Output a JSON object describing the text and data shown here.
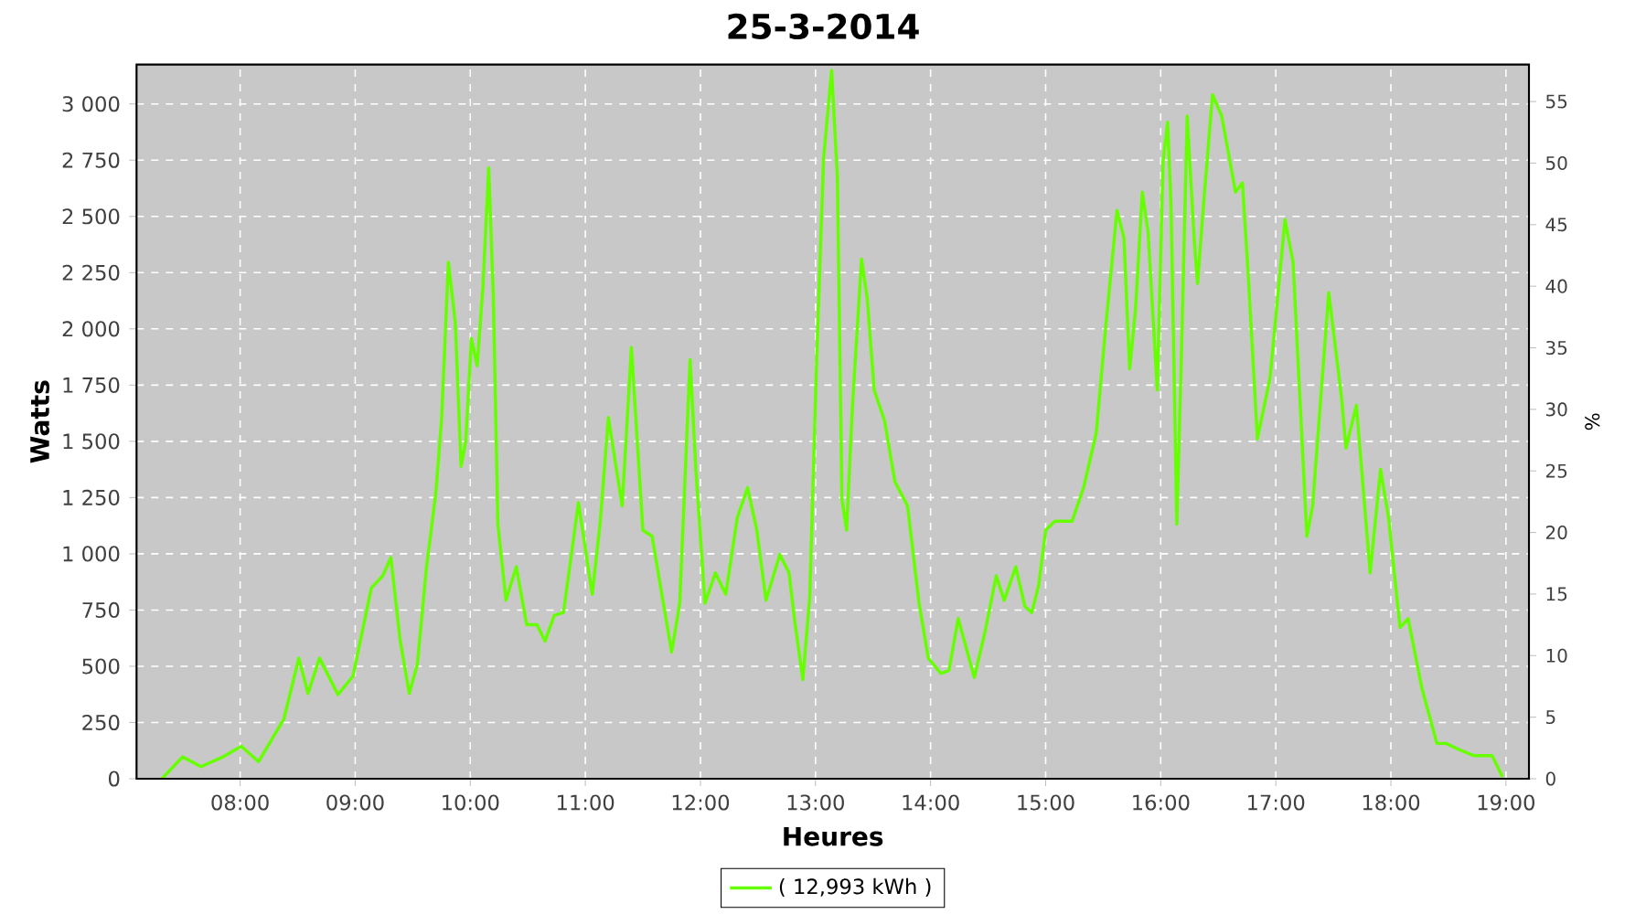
{
  "chart_data": {
    "type": "line",
    "title": "25-3-2014",
    "xlabel": "Heures",
    "ylabel": "Watts",
    "y2label": "%",
    "xlim": [
      7.1,
      19.2
    ],
    "xticks": [
      {
        "value": 8,
        "label": "08:00"
      },
      {
        "value": 9,
        "label": "09:00"
      },
      {
        "value": 10,
        "label": "10:00"
      },
      {
        "value": 11,
        "label": "11:00"
      },
      {
        "value": 12,
        "label": "12:00"
      },
      {
        "value": 13,
        "label": "13:00"
      },
      {
        "value": 14,
        "label": "14:00"
      },
      {
        "value": 15,
        "label": "15:00"
      },
      {
        "value": 16,
        "label": "16:00"
      },
      {
        "value": 17,
        "label": "17:00"
      },
      {
        "value": 18,
        "label": "18:00"
      },
      {
        "value": 19,
        "label": "19:00"
      }
    ],
    "ylim": [
      0,
      3175
    ],
    "yticks": [
      0,
      250,
      500,
      750,
      {
        "value": 1000,
        "label": "1 000"
      },
      {
        "value": 1250,
        "label": "1 250"
      },
      {
        "value": 1500,
        "label": "1 500"
      },
      {
        "value": 1750,
        "label": "1 750"
      },
      {
        "value": 2000,
        "label": "2 000"
      },
      {
        "value": 2250,
        "label": "2 250"
      },
      {
        "value": 2500,
        "label": "2 500"
      },
      {
        "value": 2750,
        "label": "2 750"
      },
      {
        "value": 3000,
        "label": "3 000"
      }
    ],
    "y2lim": [
      0,
      58
    ],
    "y2ticks": [
      0,
      5,
      10,
      15,
      20,
      25,
      30,
      35,
      40,
      45,
      50,
      55
    ],
    "grid": true,
    "legend": "bottom",
    "marker": "none",
    "line_style": "solid",
    "series": [
      {
        "name": "( 12,993 kWh )",
        "color": "#66ff00",
        "x": [
          7.32,
          7.5,
          7.66,
          7.85,
          8.01,
          8.16,
          8.38,
          8.51,
          8.59,
          8.69,
          8.85,
          8.98,
          9.14,
          9.24,
          9.31,
          9.39,
          9.47,
          9.54,
          9.62,
          9.7,
          9.75,
          9.81,
          9.87,
          9.92,
          9.96,
          10.01,
          10.06,
          10.11,
          10.16,
          10.2,
          10.24,
          10.31,
          10.4,
          10.49,
          10.58,
          10.65,
          10.73,
          10.81,
          10.94,
          11.06,
          11.13,
          11.2,
          11.32,
          11.4,
          11.5,
          11.58,
          11.66,
          11.75,
          11.82,
          11.91,
          11.96,
          12.04,
          12.13,
          12.22,
          12.32,
          12.41,
          12.49,
          12.57,
          12.69,
          12.77,
          12.82,
          12.89,
          12.95,
          13.01,
          13.07,
          13.14,
          13.19,
          13.23,
          13.27,
          13.32,
          13.4,
          13.45,
          13.51,
          13.6,
          13.69,
          13.8,
          13.9,
          13.98,
          14.09,
          14.16,
          14.24,
          14.32,
          14.38,
          14.47,
          14.57,
          14.64,
          14.74,
          14.82,
          14.88,
          14.94,
          15.0,
          15.08,
          15.23,
          15.33,
          15.44,
          15.52,
          15.62,
          15.68,
          15.73,
          15.78,
          15.84,
          15.89,
          15.97,
          16.02,
          16.06,
          16.09,
          16.14,
          16.18,
          16.23,
          16.29,
          16.32,
          16.37,
          16.45,
          16.53,
          16.65,
          16.71,
          16.76,
          16.84,
          16.95,
          17.08,
          17.15,
          17.27,
          17.32,
          17.46,
          17.57,
          17.61,
          17.7,
          17.82,
          17.91,
          17.98,
          18.08,
          18.15,
          18.27,
          18.4,
          18.48,
          18.59,
          18.72,
          18.88,
          18.97
        ],
        "values": [
          0,
          97,
          54,
          97,
          144,
          76,
          265,
          536,
          379,
          536,
          374,
          455,
          848,
          902,
          983,
          617,
          379,
          509,
          942,
          1267,
          1592,
          2296,
          2026,
          1389,
          1498,
          1958,
          1836,
          2188,
          2716,
          2147,
          1132,
          793,
          942,
          685,
          685,
          612,
          726,
          739,
          1227,
          820,
          1145,
          1606,
          1213,
          1917,
          1105,
          1078,
          834,
          563,
          780,
          1863,
          1376,
          780,
          915,
          820,
          1159,
          1294,
          1105,
          793,
          997,
          915,
          699,
          441,
          807,
          1863,
          2757,
          3149,
          2675,
          1240,
          1105,
          1646,
          2310,
          2134,
          1728,
          1592,
          1321,
          1213,
          780,
          536,
          468,
          482,
          712,
          563,
          450,
          645,
          902,
          793,
          942,
          766,
          739,
          861,
          1105,
          1145,
          1145,
          1294,
          1538,
          1999,
          2527,
          2405,
          1822,
          2080,
          2608,
          2432,
          1728,
          2743,
          2919,
          2540,
          1132,
          1890,
          2946,
          2405,
          2202,
          2540,
          3041,
          2946,
          2608,
          2649,
          2242,
          1511,
          1782,
          2486,
          2296,
          1078,
          1213,
          2161,
          1700,
          1470,
          1660,
          915,
          1376,
          1159,
          672,
          712,
          401,
          157,
          157,
          130,
          103,
          103,
          8
        ]
      }
    ]
  }
}
